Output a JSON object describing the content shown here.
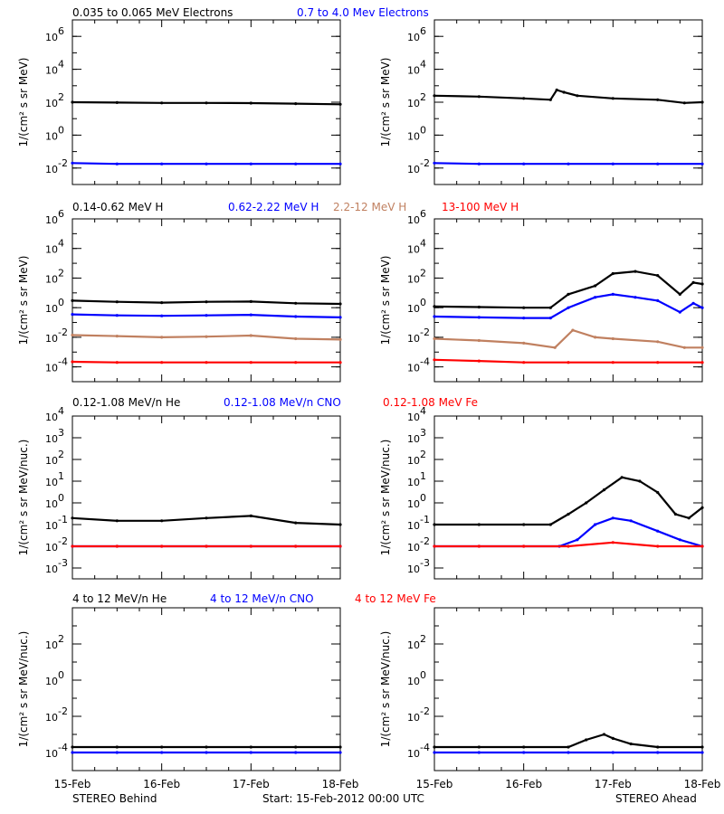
{
  "colors": {
    "black": "#000000",
    "blue": "#0000ff",
    "tan": "#c08060",
    "red": "#ff0000",
    "bg": "#ffffff"
  },
  "x_axis": {
    "tick_labels": [
      "15-Feb",
      "16-Feb",
      "17-Feb",
      "18-Feb"
    ],
    "range_days": [
      0,
      3
    ]
  },
  "footer": {
    "left": "STEREO Behind",
    "center": "Start: 15-Feb-2012 00:00 UTC",
    "right": "STEREO Ahead"
  },
  "rows": [
    {
      "legend": [
        {
          "text": "0.035 to 0.065 MeV Electrons",
          "color": "black"
        },
        {
          "text": "0.7 to 4.0 Mev Electrons",
          "color": "blue"
        }
      ],
      "ylabel": "1/(cm² s sr MeV)",
      "yrange_log10": [
        -3,
        7
      ],
      "yticks": [
        {
          "exp": 6,
          "text": "6"
        },
        {
          "exp": 4,
          "text": "4"
        },
        {
          "exp": 2,
          "text": "2"
        },
        {
          "exp": 0,
          "text": "0"
        },
        {
          "exp": -2,
          "text": "-2"
        }
      ]
    },
    {
      "legend": [
        {
          "text": "0.14-0.62 MeV H",
          "color": "black"
        },
        {
          "text": "0.62-2.22 MeV H",
          "color": "blue"
        },
        {
          "text": "2.2-12 MeV H",
          "color": "tan"
        },
        {
          "text": "13-100 MeV H",
          "color": "red"
        }
      ],
      "ylabel": "1/(cm² s sr MeV)",
      "yrange_log10": [
        -5,
        6
      ],
      "yticks": [
        {
          "exp": 6,
          "text": "6"
        },
        {
          "exp": 4,
          "text": "4"
        },
        {
          "exp": 2,
          "text": "2"
        },
        {
          "exp": 0,
          "text": "0"
        },
        {
          "exp": -2,
          "text": "-2"
        },
        {
          "exp": -4,
          "text": "-4"
        }
      ]
    },
    {
      "legend": [
        {
          "text": "0.12-1.08 MeV/n He",
          "color": "black"
        },
        {
          "text": "0.12-1.08 MeV/n CNO",
          "color": "blue"
        },
        {
          "text": "0.12-1.08 MeV Fe",
          "color": "red"
        }
      ],
      "ylabel": "1/(cm² s sr MeV/nuc.)",
      "yrange_log10": [
        -3.5,
        4
      ],
      "yticks": [
        {
          "exp": 4,
          "text": "4"
        },
        {
          "exp": 3,
          "text": "3"
        },
        {
          "exp": 2,
          "text": "2"
        },
        {
          "exp": 1,
          "text": "1"
        },
        {
          "exp": 0,
          "text": "0"
        },
        {
          "exp": -1,
          "text": "-1"
        },
        {
          "exp": -2,
          "text": "-2"
        },
        {
          "exp": -3,
          "text": "-3"
        }
      ]
    },
    {
      "legend": [
        {
          "text": "4 to 12 MeV/n He",
          "color": "black"
        },
        {
          "text": "4 to 12 MeV/n CNO",
          "color": "blue"
        },
        {
          "text": "4 to 12 MeV Fe",
          "color": "red"
        }
      ],
      "ylabel": "1/(cm² s sr MeV/nuc.)",
      "yrange_log10": [
        -5,
        4
      ],
      "yticks": [
        {
          "exp": 2,
          "text": "2"
        },
        {
          "exp": 0,
          "text": "0"
        },
        {
          "exp": -2,
          "text": "-2"
        },
        {
          "exp": -4,
          "text": "-4"
        }
      ]
    }
  ],
  "chart_data": [
    {
      "type": "scatter",
      "panel": "behind-electrons",
      "yscale": "log",
      "series": [
        {
          "name": "0.035 to 0.065 MeV Electrons",
          "color": "black",
          "x": [
            0,
            0.5,
            1,
            1.5,
            2,
            2.5,
            3
          ],
          "y": [
            100,
            95,
            90,
            90,
            88,
            82,
            75
          ]
        },
        {
          "name": "0.7 to 4.0 Mev Electrons",
          "color": "blue",
          "x": [
            0,
            0.5,
            1,
            1.5,
            2,
            2.5,
            3
          ],
          "y": [
            0.02,
            0.018,
            0.018,
            0.018,
            0.018,
            0.018,
            0.018
          ]
        }
      ]
    },
    {
      "type": "scatter",
      "panel": "ahead-electrons",
      "yscale": "log",
      "series": [
        {
          "name": "0.035 to 0.065 MeV Electrons",
          "color": "black",
          "x": [
            0,
            0.5,
            1,
            1.3,
            1.37,
            1.45,
            1.6,
            2,
            2.5,
            2.8,
            3
          ],
          "y": [
            250,
            220,
            170,
            140,
            550,
            400,
            250,
            170,
            140,
            90,
            100
          ]
        },
        {
          "name": "0.7 to 4.0 Mev Electrons",
          "color": "blue",
          "x": [
            0,
            0.5,
            1,
            1.5,
            2,
            2.5,
            3
          ],
          "y": [
            0.02,
            0.018,
            0.018,
            0.018,
            0.018,
            0.018,
            0.018
          ]
        }
      ]
    },
    {
      "type": "scatter",
      "panel": "behind-protons",
      "yscale": "log",
      "series": [
        {
          "name": "0.14-0.62 MeV H",
          "color": "black",
          "x": [
            0,
            0.5,
            1,
            1.5,
            2,
            2.5,
            3
          ],
          "y": [
            3,
            2.5,
            2.2,
            2.5,
            2.6,
            2.0,
            1.8
          ]
        },
        {
          "name": "0.62-2.22 MeV H",
          "color": "blue",
          "x": [
            0,
            0.5,
            1,
            1.5,
            2,
            2.5,
            3
          ],
          "y": [
            0.35,
            0.3,
            0.28,
            0.3,
            0.33,
            0.25,
            0.22
          ]
        },
        {
          "name": "2.2-12 MeV H",
          "color": "tan",
          "x": [
            0,
            0.5,
            1,
            1.5,
            2,
            2.5,
            3
          ],
          "y": [
            0.014,
            0.012,
            0.01,
            0.011,
            0.013,
            0.008,
            0.007
          ]
        },
        {
          "name": "13-100 MeV H",
          "color": "red",
          "x": [
            0,
            0.5,
            1,
            1.5,
            2,
            2.5,
            3
          ],
          "y": [
            0.00022,
            0.0002,
            0.0002,
            0.0002,
            0.0002,
            0.0002,
            0.0002
          ]
        }
      ]
    },
    {
      "type": "scatter",
      "panel": "ahead-protons",
      "yscale": "log",
      "series": [
        {
          "name": "0.14-0.62 MeV H",
          "color": "black",
          "x": [
            0,
            0.5,
            1,
            1.3,
            1.5,
            1.8,
            2,
            2.25,
            2.5,
            2.75,
            2.9,
            3
          ],
          "y": [
            1.2,
            1.1,
            1.0,
            1.0,
            8,
            30,
            200,
            280,
            150,
            8,
            50,
            40
          ]
        },
        {
          "name": "0.62-2.22 MeV H",
          "color": "blue",
          "x": [
            0,
            0.5,
            1,
            1.3,
            1.5,
            1.8,
            2,
            2.25,
            2.5,
            2.75,
            2.9,
            3
          ],
          "y": [
            0.25,
            0.22,
            0.2,
            0.2,
            1.0,
            5,
            8,
            5,
            3,
            0.5,
            2,
            1
          ]
        },
        {
          "name": "2.2-12 MeV H",
          "color": "tan",
          "x": [
            0,
            0.5,
            1,
            1.35,
            1.55,
            1.8,
            2,
            2.5,
            2.8,
            3
          ],
          "y": [
            0.008,
            0.006,
            0.004,
            0.002,
            0.03,
            0.01,
            0.008,
            0.005,
            0.002,
            0.002
          ]
        },
        {
          "name": "13-100 MeV H",
          "color": "red",
          "x": [
            0,
            0.5,
            1,
            1.5,
            2,
            2.5,
            3
          ],
          "y": [
            0.0003,
            0.00025,
            0.0002,
            0.0002,
            0.0002,
            0.0002,
            0.0002
          ]
        }
      ]
    },
    {
      "type": "scatter",
      "panel": "behind-heavy-low",
      "yscale": "log",
      "series": [
        {
          "name": "0.12-1.08 MeV/n He",
          "color": "black",
          "x": [
            0,
            0.5,
            1,
            1.5,
            2,
            2.5,
            3
          ],
          "y": [
            0.2,
            0.15,
            0.15,
            0.2,
            0.25,
            0.12,
            0.1
          ]
        },
        {
          "name": "0.12-1.08 MeV/n CNO",
          "color": "blue",
          "x": [
            0,
            0.5,
            1,
            1.5,
            2,
            2.5,
            3
          ],
          "y": [
            0.01,
            0.01,
            0.01,
            0.01,
            0.01,
            0.01,
            0.01
          ]
        },
        {
          "name": "0.12-1.08 MeV Fe",
          "color": "red",
          "x": [
            0,
            0.5,
            1,
            1.5,
            2,
            2.5,
            3
          ],
          "y": [
            0.01,
            0.01,
            0.01,
            0.01,
            0.01,
            0.01,
            0.01
          ]
        }
      ]
    },
    {
      "type": "scatter",
      "panel": "ahead-heavy-low",
      "yscale": "log",
      "series": [
        {
          "name": "0.12-1.08 MeV/n He",
          "color": "black",
          "x": [
            0,
            0.5,
            1,
            1.3,
            1.5,
            1.7,
            1.9,
            2.1,
            2.3,
            2.5,
            2.7,
            2.85,
            3
          ],
          "y": [
            0.1,
            0.1,
            0.1,
            0.1,
            0.3,
            1.0,
            4,
            15,
            10,
            3,
            0.3,
            0.2,
            0.6
          ]
        },
        {
          "name": "0.12-1.08 MeV/n CNO",
          "color": "blue",
          "x": [
            0,
            0.5,
            1,
            1.4,
            1.6,
            1.8,
            2,
            2.2,
            2.5,
            2.75,
            3
          ],
          "y": [
            0.01,
            0.01,
            0.01,
            0.01,
            0.02,
            0.1,
            0.2,
            0.15,
            0.05,
            0.02,
            0.01
          ]
        },
        {
          "name": "0.12-1.08 MeV Fe",
          "color": "red",
          "x": [
            0,
            0.5,
            1,
            1.5,
            2,
            2.5,
            3
          ],
          "y": [
            0.01,
            0.01,
            0.01,
            0.01,
            0.015,
            0.01,
            0.01
          ]
        }
      ]
    },
    {
      "type": "scatter",
      "panel": "behind-heavy-high",
      "yscale": "log",
      "series": [
        {
          "name": "4 to 12 MeV/n He",
          "color": "black",
          "x": [
            0,
            0.5,
            1,
            1.5,
            2,
            2.5,
            3
          ],
          "y": [
            0.0002,
            0.0002,
            0.0002,
            0.0002,
            0.0002,
            0.0002,
            0.0002
          ]
        },
        {
          "name": "4 to 12 MeV/n CNO",
          "color": "blue",
          "x": [
            0,
            0.5,
            1,
            1.5,
            2,
            2.5,
            3
          ],
          "y": [
            0.0001,
            0.0001,
            0.0001,
            0.0001,
            0.0001,
            0.0001,
            0.0001
          ]
        }
      ]
    },
    {
      "type": "scatter",
      "panel": "ahead-heavy-high",
      "yscale": "log",
      "series": [
        {
          "name": "4 to 12 MeV/n He",
          "color": "black",
          "x": [
            0,
            0.5,
            1,
            1.5,
            1.7,
            1.9,
            2,
            2.2,
            2.5,
            3
          ],
          "y": [
            0.0002,
            0.0002,
            0.0002,
            0.0002,
            0.0005,
            0.001,
            0.0006,
            0.0003,
            0.0002,
            0.0002
          ]
        },
        {
          "name": "4 to 12 MeV/n CNO",
          "color": "blue",
          "x": [
            0,
            0.5,
            1,
            1.5,
            2,
            2.5,
            3
          ],
          "y": [
            0.0001,
            0.0001,
            0.0001,
            0.0001,
            0.0001,
            0.0001,
            0.0001
          ]
        }
      ]
    }
  ]
}
